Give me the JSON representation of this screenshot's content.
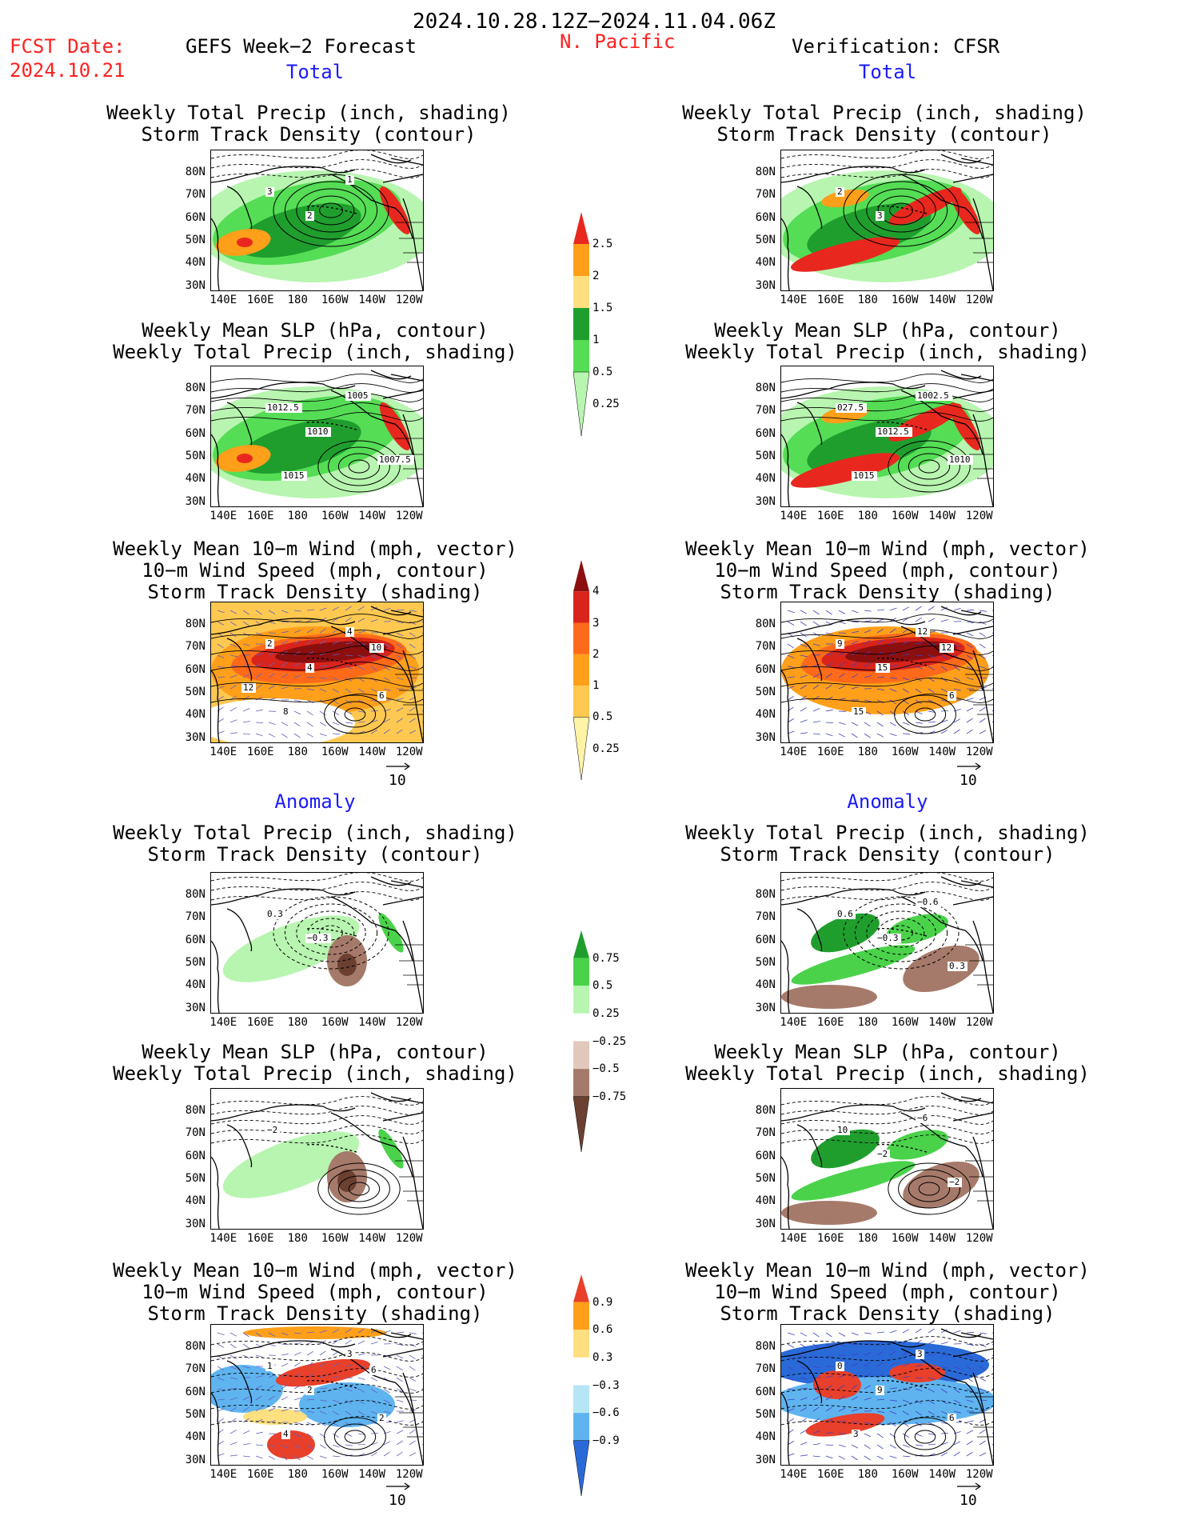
{
  "header": {
    "period": "2024.10.28.12Z−2024.11.04.06Z",
    "fcst_label": "FCST Date:",
    "fcst_date": "2024.10.21",
    "model": "GEFS Week−2 Forecast",
    "region": "N. Pacific",
    "verification": "Verification: CFSR",
    "section_total": "Total",
    "section_anomaly": "Anomaly"
  },
  "panel_titles": {
    "precip_track": [
      "Weekly Total Precip (inch, shading)",
      "Storm Track Density (contour)"
    ],
    "slp_precip": [
      "Weekly Mean SLP (hPa, contour)",
      "Weekly Total Precip (inch, shading)"
    ],
    "wind_track": [
      "Weekly Mean 10−m Wind (mph, vector)",
      "10−m Wind Speed (mph, contour)",
      "Storm Track Density (shading)"
    ]
  },
  "axes": {
    "lat_ticks": [
      "80N",
      "70N",
      "60N",
      "50N",
      "40N",
      "30N"
    ],
    "lon_ticks": [
      "140E",
      "160E",
      "180",
      "160W",
      "140W",
      "120W"
    ]
  },
  "vector_ref": "10",
  "colorbars": {
    "precip_total": {
      "labels": [
        "2.5",
        "2",
        "1.5",
        "1",
        "0.5",
        "0.25"
      ],
      "colors": [
        "#e8281e",
        "#ff9f1a",
        "#ffe080",
        "#1f9e2e",
        "#55dd55",
        "#b8f5b0"
      ]
    },
    "track_total": {
      "labels": [
        "4",
        "3",
        "2",
        "1",
        "0.5",
        "0.25"
      ],
      "colors": [
        "#8b0f0f",
        "#d8241a",
        "#ff6a1a",
        "#ff9f1a",
        "#ffc850",
        "#fff3a6"
      ]
    },
    "precip_anom": {
      "labels": [
        "0.75",
        "0.5",
        "0.25",
        "−0.25",
        "−0.5",
        "−0.75"
      ],
      "colors": [
        "#1f9e2e",
        "#4bd24b",
        "#b8f5b0",
        "#ffffff",
        "#e2c8bc",
        "#a67a6a",
        "#6b4030"
      ]
    },
    "track_anom": {
      "labels": [
        "0.9",
        "0.6",
        "0.3",
        "−0.3",
        "−0.6",
        "−0.9"
      ],
      "colors": [
        "#e8402a",
        "#ff9f1a",
        "#ffe080",
        "#ffffff",
        "#b6e6f5",
        "#5fb4f0",
        "#2a6ad8"
      ]
    }
  },
  "contour_labels": {
    "fcst_total_precip": [
      "3",
      "2",
      "1"
    ],
    "fcst_total_slp": [
      "1012.5",
      "1010",
      "1005",
      "1007.5",
      "1015"
    ],
    "fcst_total_wind": [
      "2",
      "4",
      "4",
      "6",
      "8",
      "10",
      "12"
    ],
    "ver_total_precip": [
      "2",
      "3"
    ],
    "ver_total_slp": [
      "027.5",
      "1012.5",
      "1002.5",
      "1010",
      "1015"
    ],
    "ver_total_wind": [
      "9",
      "15",
      "12",
      "6",
      "15",
      "12"
    ],
    "fcst_anom_precip": [
      "0.3",
      "−0.3"
    ],
    "fcst_anom_slp": [
      "−2"
    ],
    "fcst_anom_wind": [
      "1",
      "2",
      "3",
      "2",
      "4",
      "6"
    ],
    "ver_anom_precip": [
      "0.6",
      "−0.3",
      "−0.6",
      "0.3"
    ],
    "ver_anom_slp": [
      "10",
      "−2",
      "−6",
      "−2"
    ],
    "ver_anom_wind": [
      "0",
      "9",
      "3",
      "6",
      "3"
    ]
  }
}
